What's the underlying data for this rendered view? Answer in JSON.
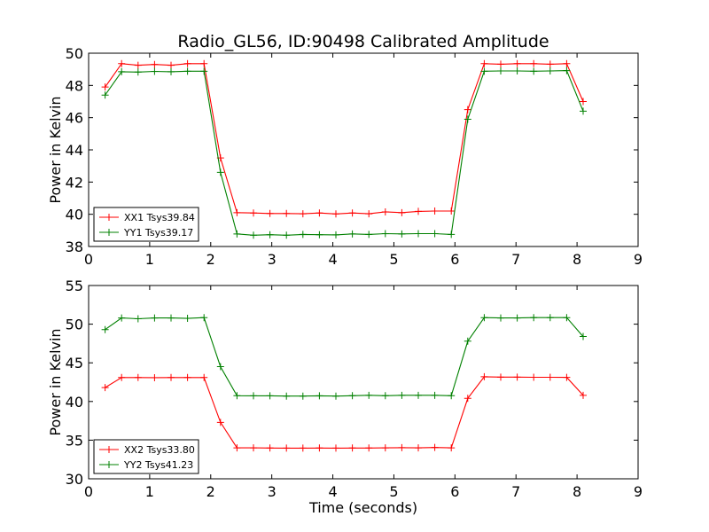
{
  "figure": {
    "title": "Radio_GL56, ID:90498 Calibrated Amplitude"
  },
  "chart_data": [
    {
      "type": "line",
      "title": "Radio_GL56, ID:90498 Calibrated Amplitude",
      "xlabel": "",
      "ylabel": "Power in Kelvin",
      "xlim": [
        0,
        9
      ],
      "ylim": [
        38,
        50
      ],
      "xticks": [
        0,
        1,
        2,
        3,
        4,
        5,
        6,
        7,
        8,
        9
      ],
      "yticks": [
        38,
        40,
        42,
        44,
        46,
        48,
        50
      ],
      "grid": false,
      "legend_position": "lower-left",
      "x": [
        0.27,
        0.54,
        0.81,
        1.08,
        1.35,
        1.62,
        1.89,
        2.16,
        2.43,
        2.7,
        2.97,
        3.24,
        3.51,
        3.78,
        4.05,
        4.32,
        4.59,
        4.86,
        5.13,
        5.4,
        5.67,
        5.94,
        6.21,
        6.48,
        6.75,
        7.02,
        7.29,
        7.56,
        7.83,
        8.1
      ],
      "series": [
        {
          "name": "XX1 Tsys39.84",
          "color": "#ff0000",
          "values": [
            47.9,
            49.35,
            49.25,
            49.3,
            49.25,
            49.35,
            49.35,
            43.5,
            40.1,
            40.08,
            40.05,
            40.05,
            40.03,
            40.08,
            40.02,
            40.08,
            40.03,
            40.15,
            40.1,
            40.18,
            40.2,
            40.2,
            46.5,
            49.35,
            49.32,
            49.35,
            49.35,
            49.32,
            49.35,
            47.0
          ]
        },
        {
          "name": "YY1 Tsys39.17",
          "color": "#008000",
          "values": [
            47.4,
            48.85,
            48.83,
            48.87,
            48.85,
            48.88,
            48.88,
            42.6,
            38.78,
            38.7,
            38.73,
            38.7,
            38.75,
            38.73,
            38.72,
            38.78,
            38.75,
            38.8,
            38.78,
            38.8,
            38.8,
            38.75,
            45.9,
            48.88,
            48.9,
            48.9,
            48.88,
            48.9,
            48.92,
            46.4
          ]
        }
      ]
    },
    {
      "type": "line",
      "title": "",
      "xlabel": "Time (seconds)",
      "ylabel": "Power in Kelvin",
      "xlim": [
        0,
        9
      ],
      "ylim": [
        30,
        55
      ],
      "xticks": [
        0,
        1,
        2,
        3,
        4,
        5,
        6,
        7,
        8,
        9
      ],
      "yticks": [
        30,
        35,
        40,
        45,
        50,
        55
      ],
      "grid": false,
      "legend_position": "lower-left",
      "x": [
        0.27,
        0.54,
        0.81,
        1.08,
        1.35,
        1.62,
        1.89,
        2.16,
        2.43,
        2.7,
        2.97,
        3.24,
        3.51,
        3.78,
        4.05,
        4.32,
        4.59,
        4.86,
        5.13,
        5.4,
        5.67,
        5.94,
        6.21,
        6.48,
        6.75,
        7.02,
        7.29,
        7.56,
        7.83,
        8.1
      ],
      "series": [
        {
          "name": "XX2 Tsys33.80",
          "color": "#ff0000",
          "values": [
            41.8,
            43.1,
            43.1,
            43.08,
            43.1,
            43.1,
            43.1,
            37.3,
            34.0,
            34.0,
            33.98,
            33.97,
            33.97,
            33.98,
            33.97,
            33.98,
            33.98,
            34.0,
            34.03,
            34.0,
            34.05,
            34.0,
            40.4,
            43.2,
            43.15,
            43.15,
            43.13,
            43.13,
            43.12,
            40.8
          ]
        },
        {
          "name": "YY2 Tsys41.23",
          "color": "#008000",
          "values": [
            49.3,
            50.8,
            50.7,
            50.8,
            50.8,
            50.75,
            50.85,
            44.5,
            40.75,
            40.73,
            40.73,
            40.7,
            40.7,
            40.73,
            40.7,
            40.75,
            40.8,
            40.75,
            40.8,
            40.8,
            40.8,
            40.75,
            47.8,
            50.85,
            50.8,
            50.8,
            50.85,
            50.85,
            50.85,
            48.4
          ]
        }
      ]
    }
  ]
}
